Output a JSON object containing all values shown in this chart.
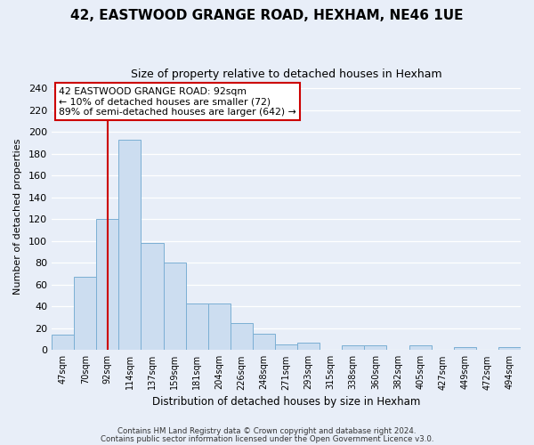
{
  "title": "42, EASTWOOD GRANGE ROAD, HEXHAM, NE46 1UE",
  "subtitle": "Size of property relative to detached houses in Hexham",
  "xlabel": "Distribution of detached houses by size in Hexham",
  "ylabel": "Number of detached properties",
  "bar_labels": [
    "47sqm",
    "70sqm",
    "92sqm",
    "114sqm",
    "137sqm",
    "159sqm",
    "181sqm",
    "204sqm",
    "226sqm",
    "248sqm",
    "271sqm",
    "293sqm",
    "315sqm",
    "338sqm",
    "360sqm",
    "382sqm",
    "405sqm",
    "427sqm",
    "449sqm",
    "472sqm",
    "494sqm"
  ],
  "bar_heights": [
    14,
    67,
    120,
    193,
    98,
    80,
    43,
    43,
    25,
    15,
    5,
    7,
    0,
    4,
    4,
    0,
    4,
    0,
    3,
    0,
    3
  ],
  "bar_color": "#ccddf0",
  "bar_edge_color": "#7bafd4",
  "vline_x_index": 2,
  "vline_color": "#cc0000",
  "annotation_lines": [
    "42 EASTWOOD GRANGE ROAD: 92sqm",
    "← 10% of detached houses are smaller (72)",
    "89% of semi-detached houses are larger (642) →"
  ],
  "annotation_box_edge": "#cc0000",
  "ylim": [
    0,
    245
  ],
  "yticks": [
    0,
    20,
    40,
    60,
    80,
    100,
    120,
    140,
    160,
    180,
    200,
    220,
    240
  ],
  "footer_line1": "Contains HM Land Registry data © Crown copyright and database right 2024.",
  "footer_line2": "Contains public sector information licensed under the Open Government Licence v3.0.",
  "background_color": "#e8eef8",
  "plot_bg_color": "#e8eef8",
  "grid_color": "#ffffff"
}
